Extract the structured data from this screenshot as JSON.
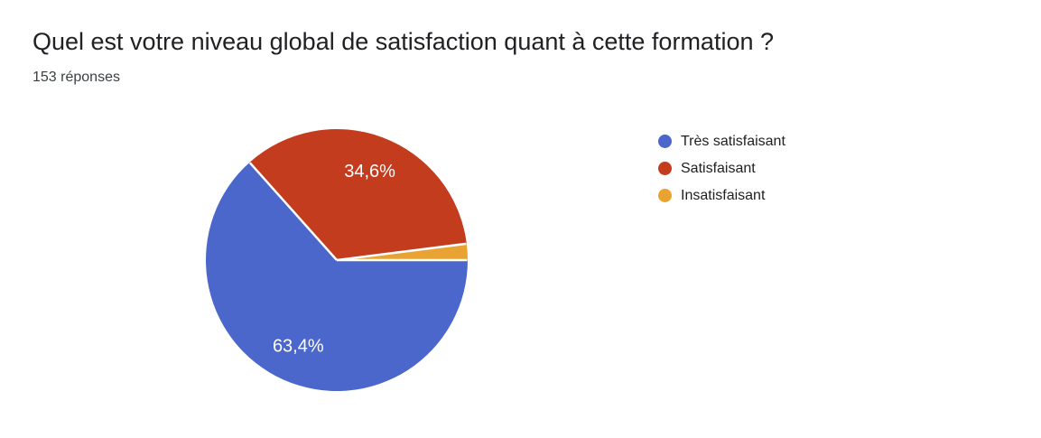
{
  "header": {
    "title": "Quel est votre niveau global de satisfaction quant à cette formation ?",
    "subtitle": "153 réponses"
  },
  "chart_data": {
    "type": "pie",
    "labels": [
      "Très satisfaisant",
      "Satisfaisant",
      "Insatisfaisant"
    ],
    "values": [
      63.4,
      34.6,
      2.0
    ],
    "display_labels": [
      "63,4%",
      "34,6%",
      ""
    ],
    "colors": [
      "#4b67cb",
      "#c33c1e",
      "#e9a333"
    ],
    "start_angle_deg": 0,
    "direction": "clockwise",
    "legend_position": "right",
    "slice_label_color": "#ffffff",
    "separator_color": "#ffffff",
    "title": "Quel est votre niveau global de satisfaction quant à cette formation ?",
    "subtitle": "153 réponses"
  }
}
